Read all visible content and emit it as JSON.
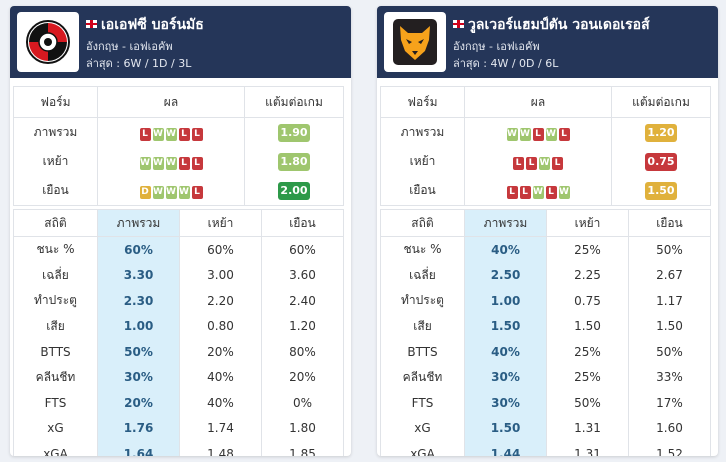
{
  "colors": {
    "header_bg": "#253659",
    "win": "#9fc66e",
    "loss": "#c6383c",
    "draw": "#e0b13c",
    "highlight": "#d9effa"
  },
  "teams": [
    {
      "name": "เอเอฟซี บอร์นมัธ",
      "league": "อังกฤษ - เอฟเอคัพ",
      "last": "ล่าสุด : 6W / 1D / 3L",
      "logo": "bournemouth-crest-icon",
      "form_headers": [
        "ฟอร์ม",
        "ผล",
        "แต้มต่อเกม"
      ],
      "form_rows": [
        {
          "label": "ภาพรวม",
          "results": [
            "L",
            "W",
            "W",
            "L",
            "L"
          ],
          "ppg": "1.90",
          "ppg_color": "#9fc66e"
        },
        {
          "label": "เหย้า",
          "results": [
            "W",
            "W",
            "W",
            "L",
            "L"
          ],
          "ppg": "1.80",
          "ppg_color": "#9fc66e"
        },
        {
          "label": "เยือน",
          "results": [
            "D",
            "W",
            "W",
            "W",
            "L"
          ],
          "ppg": "2.00",
          "ppg_color": "#2d9949"
        }
      ],
      "stat_headers": [
        "สถิติ",
        "ภาพรวม",
        "เหย้า",
        "เยือน"
      ],
      "stat_rows": [
        {
          "label": "ชนะ %",
          "overall": "60%",
          "home": "60%",
          "away": "60%"
        },
        {
          "label": "เฉลี่ย",
          "overall": "3.30",
          "home": "3.00",
          "away": "3.60"
        },
        {
          "label": "ทำประตู",
          "overall": "2.30",
          "home": "2.20",
          "away": "2.40"
        },
        {
          "label": "เสีย",
          "overall": "1.00",
          "home": "0.80",
          "away": "1.20"
        },
        {
          "label": "BTTS",
          "overall": "50%",
          "home": "20%",
          "away": "80%"
        },
        {
          "label": "คลีนชีท",
          "overall": "30%",
          "home": "40%",
          "away": "20%"
        },
        {
          "label": "FTS",
          "overall": "20%",
          "home": "40%",
          "away": "0%"
        },
        {
          "label": "xG",
          "overall": "1.76",
          "home": "1.74",
          "away": "1.80"
        },
        {
          "label": "xGA",
          "overall": "1.64",
          "home": "1.48",
          "away": "1.85"
        }
      ]
    },
    {
      "name": "วูลเวอร์แฮมป์ตัน วอนเดอเรอส์",
      "league": "อังกฤษ - เอฟเอคัพ",
      "last": "ล่าสุด : 4W / 0D / 6L",
      "logo": "wolves-crest-icon",
      "form_headers": [
        "ฟอร์ม",
        "ผล",
        "แต้มต่อเกม"
      ],
      "form_rows": [
        {
          "label": "ภาพรวม",
          "results": [
            "W",
            "W",
            "L",
            "W",
            "L"
          ],
          "ppg": "1.20",
          "ppg_color": "#e0b13c"
        },
        {
          "label": "เหย้า",
          "results": [
            "L",
            "L",
            "W",
            "L"
          ],
          "ppg": "0.75",
          "ppg_color": "#c6383c"
        },
        {
          "label": "เยือน",
          "results": [
            "L",
            "L",
            "W",
            "L",
            "W"
          ],
          "ppg": "1.50",
          "ppg_color": "#e0b13c"
        }
      ],
      "stat_headers": [
        "สถิติ",
        "ภาพรวม",
        "เหย้า",
        "เยือน"
      ],
      "stat_rows": [
        {
          "label": "ชนะ %",
          "overall": "40%",
          "home": "25%",
          "away": "50%"
        },
        {
          "label": "เฉลี่ย",
          "overall": "2.50",
          "home": "2.25",
          "away": "2.67"
        },
        {
          "label": "ทำประตู",
          "overall": "1.00",
          "home": "0.75",
          "away": "1.17"
        },
        {
          "label": "เสีย",
          "overall": "1.50",
          "home": "1.50",
          "away": "1.50"
        },
        {
          "label": "BTTS",
          "overall": "40%",
          "home": "25%",
          "away": "50%"
        },
        {
          "label": "คลีนชีท",
          "overall": "30%",
          "home": "25%",
          "away": "33%"
        },
        {
          "label": "FTS",
          "overall": "30%",
          "home": "50%",
          "away": "17%"
        },
        {
          "label": "xG",
          "overall": "1.50",
          "home": "1.31",
          "away": "1.60"
        },
        {
          "label": "xGA",
          "overall": "1.44",
          "home": "1.31",
          "away": "1.52"
        }
      ]
    }
  ]
}
